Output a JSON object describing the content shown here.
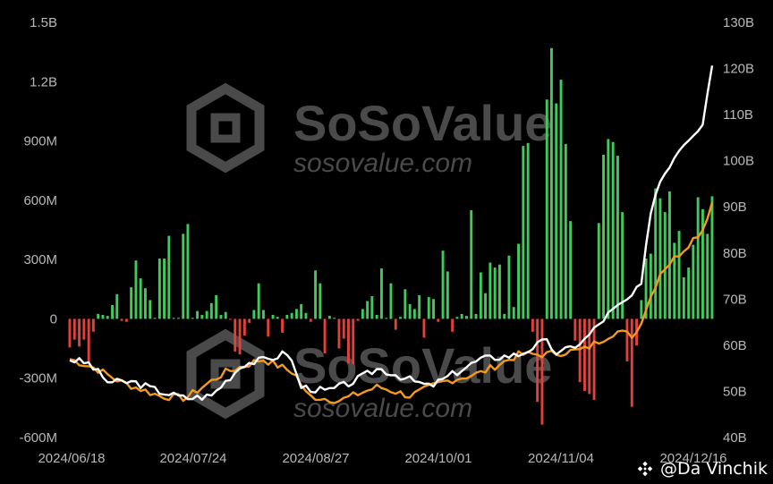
{
  "watermark": {
    "brand": "SoSoValue",
    "url": "sosovalue.com"
  },
  "credit": {
    "text": "@Da Vinchik"
  },
  "colors": {
    "inflow": "#3fca5a",
    "outflow": "#e2413b",
    "total_assets": "#ffffff",
    "cumulative": "#f39a1f",
    "background": "#000000"
  },
  "chart_data": {
    "type": "bar",
    "left_axis": {
      "ticks": [
        "1.5B",
        "1.2B",
        "900M",
        "600M",
        "300M",
        "0",
        "-300M",
        "-600M"
      ],
      "range": [
        -600000000,
        1500000000
      ]
    },
    "right_axis": {
      "ticks": [
        "130B",
        "120B",
        "110B",
        "100B",
        "90B",
        "80B",
        "70B",
        "60B",
        "50B",
        "40B"
      ],
      "range": [
        40000000000,
        130000000000
      ]
    },
    "x_ticks": [
      "2024/06/18",
      "2024/07/24",
      "2024/08/27",
      "2024/10/01",
      "2024/11/04",
      "2024/12/16"
    ],
    "daily_net_inflow_musd": [
      -145,
      -105,
      -140,
      -105,
      -225,
      -65,
      25,
      20,
      15,
      70,
      125,
      -10,
      -15,
      160,
      295,
      205,
      155,
      95,
      5,
      305,
      305,
      420,
      5,
      5,
      430,
      480,
      5,
      40,
      20,
      40,
      80,
      120,
      20,
      35,
      -5,
      -165,
      -180,
      -85,
      -20,
      45,
      180,
      45,
      -90,
      20,
      10,
      -70,
      20,
      30,
      50,
      75,
      30,
      -15,
      245,
      180,
      -175,
      15,
      5,
      -150,
      -100,
      -225,
      -230,
      -10,
      50,
      90,
      115,
      20,
      255,
      5,
      180,
      -55,
      10,
      150,
      75,
      50,
      120,
      -95,
      110,
      100,
      -15,
      345,
      240,
      -65,
      10,
      25,
      15,
      550,
      25,
      235,
      130,
      285,
      260,
      275,
      25,
      320,
      60,
      380,
      875,
      890,
      -65,
      -420,
      -535,
      1110,
      1370,
      1090,
      1210,
      885,
      495,
      -110,
      -320,
      -365,
      -380,
      -410,
      485,
      830,
      910,
      895,
      825,
      540,
      -215,
      -445,
      -135,
      95,
      305,
      330,
      660,
      610,
      540,
      645,
      385,
      445,
      210,
      260,
      375,
      615,
      555,
      430,
      620
    ]
  }
}
